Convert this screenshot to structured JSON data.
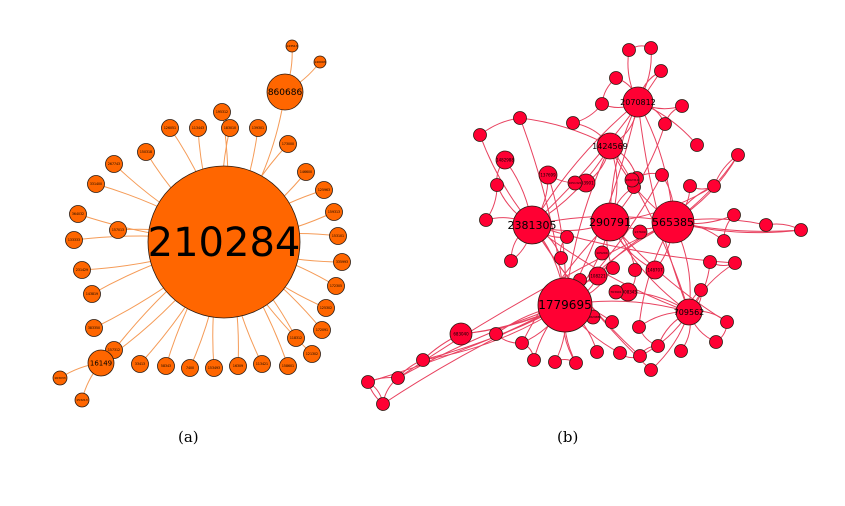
{
  "captions": {
    "a": "(a)",
    "b": "(b)"
  },
  "colors": {
    "graph_a_node": "#ff6600",
    "graph_a_edge": "#f59b57",
    "graph_b_node": "#ff0033",
    "graph_b_edge": "#e8415f",
    "stroke": "#2a1a10"
  },
  "graph_a": {
    "hub": "210284",
    "major_nodes": [
      "860686",
      "16149"
    ],
    "minor_labels": [
      "267743",
      "331400",
      "364032",
      "133333",
      "231429",
      "143819",
      "383350",
      "157312",
      "33413",
      "58343",
      "7400",
      "153493",
      "16309",
      "113421",
      "158601",
      "121302",
      "172091",
      "125302",
      "172305",
      "335993",
      "153101",
      "159313",
      "125963",
      "146600",
      "173000",
      "139301",
      "183010",
      "195312",
      "113443",
      "126051",
      "150318",
      "157013",
      "118312",
      "143513",
      "140093",
      "163033",
      "153213",
      "132109",
      "189302"
    ]
  },
  "graph_b": {
    "major_nodes": [
      "1779695",
      "290791",
      "565385",
      "2381305",
      "1424569",
      "2070812",
      "709562"
    ],
    "minor_labels": [
      "137699",
      "763901",
      "1482988",
      "148707",
      "1008345",
      "683040",
      "108221",
      "1051321",
      "1002310",
      "105200"
    ]
  }
}
